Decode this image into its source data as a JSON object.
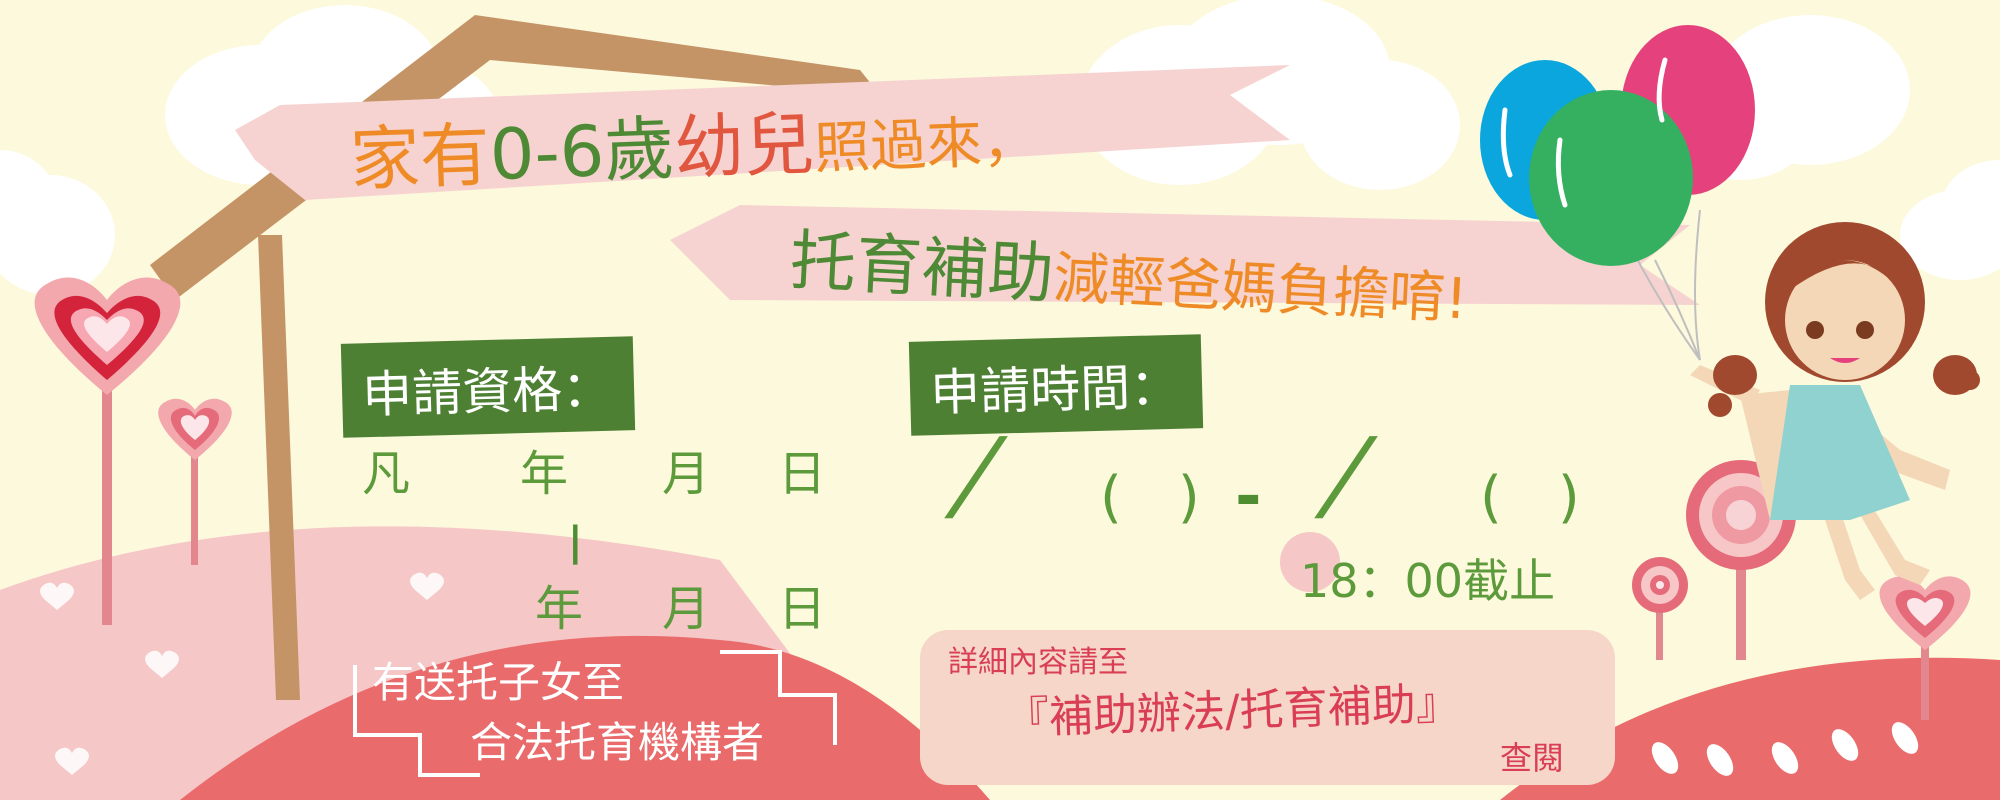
{
  "headline": {
    "line1_a": "家有",
    "line1_b": "0-6",
    "line1_c": "歲",
    "line1_d": "幼兒",
    "line1_e": "照過來，",
    "line2_a": "托育補助",
    "line2_b": "減輕爸媽負擔唷!"
  },
  "eligibility": {
    "label": "申請資格：",
    "from_prefix": "凡",
    "year": "年",
    "month": "月",
    "day": "日",
    "dash": "|",
    "to_year": "年",
    "to_month": "月",
    "to_day": "日",
    "condition_line1": "有送托子女至",
    "condition_line2": "合法托育機構者"
  },
  "schedule": {
    "label": "申請時間：",
    "slash1": "/",
    "paren1": "(　)",
    "dash": "-",
    "slash2": "/",
    "paren2": "(　)",
    "deadline": "18：00截止"
  },
  "details": {
    "intro": "詳細內容請至",
    "link": "『補助辦法/托育補助』",
    "suffix": "查閱"
  },
  "colors": {
    "background": "#fdf9dc",
    "banner": "#f6d3d0",
    "label_bg": "#4e8034",
    "orange": "#ef8b27",
    "green": "#4e8a35",
    "red": "#e1563f",
    "hill_pink": "#f5c7c7",
    "hill_red": "#ea6b6b"
  }
}
